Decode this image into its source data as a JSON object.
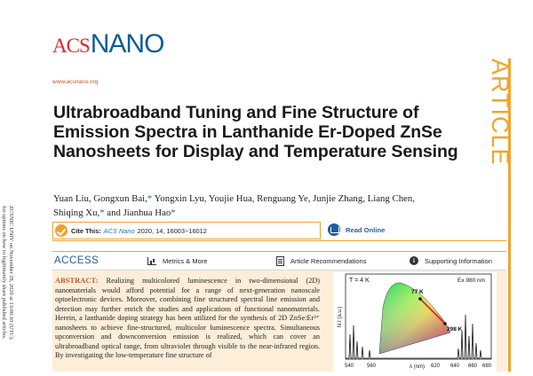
{
  "side_note": {
    "line1": "ZCSNIC UNIV on November 28, 2020 at 13:00:10 (UTC).",
    "line2": "for options on how to legitimately share published articles."
  },
  "journal": {
    "logo_acs": "ACS",
    "logo_nano": "NANO",
    "website": "www.acsnano.org",
    "section_banner": "ARTICLE"
  },
  "article": {
    "title": "Ultrabroadband Tuning and Fine Structure of Emission Spectra in Lanthanide Er-Doped ZnSe Nanosheets for Display and Temperature Sensing",
    "authors_line1_a": "Yuan Liu, Gongxun Bai,",
    "authors_line1_b": " Yongxin Lyu, Youjie Hua, Renguang Ye, Junjie Zhang, Liang Chen,",
    "authors_line2_a": "Shiqing Xu,",
    "authors_line2_b": " and Jianhua Hao",
    "star": "*"
  },
  "cite": {
    "label": "Cite This:",
    "journal": "ACS Nano",
    "details": "2020, 14, 16003−16012",
    "read_online": "Read Online"
  },
  "access_bar": {
    "access_label": "ACCESS",
    "metrics": "Metrics & More",
    "recommendations": "Article Recommendations",
    "supporting": "Supporting Information"
  },
  "abstract": {
    "label": "ABSTRACT:",
    "text": "Realizing multicolored luminescence in two-dimensional (2D) nanomaterials would afford potential for a range of next-generation nanoscale optoelectronic devices. Moreover, combining fine structured spectral line emission and detection may further enrich the studies and applications of functional nanomaterials. Herein, a lanthanide doping strategy has been utilized for the synthesis of 2D ZnSe:Er³⁺ nanosheets to achieve fine-structured, multicolor luminescence spectra. Simultaneous upconversion and downconversion emission is realized, which can cover an ultrabroadband optical range, from ultraviolet through visible to the near-infrared region. By investigating the low-temperature fine structure of"
  },
  "figure": {
    "temp_label": "T = 4 K",
    "excitation_label": "Ex 980 nm",
    "point_77": "77 K",
    "point_298": "298 K",
    "ylabel": "N.I (a.u.)",
    "xlabel": "λ (nm)",
    "xticks": [
      "540",
      "560",
      "620",
      "640",
      "660",
      "680"
    ]
  },
  "colors": {
    "acs_red": "#d9272e",
    "nano_blue": "#0f5c98",
    "accent_orange": "#f2a52b",
    "link_blue": "#1b75bb",
    "abstract_bg": "#fdeed9"
  }
}
